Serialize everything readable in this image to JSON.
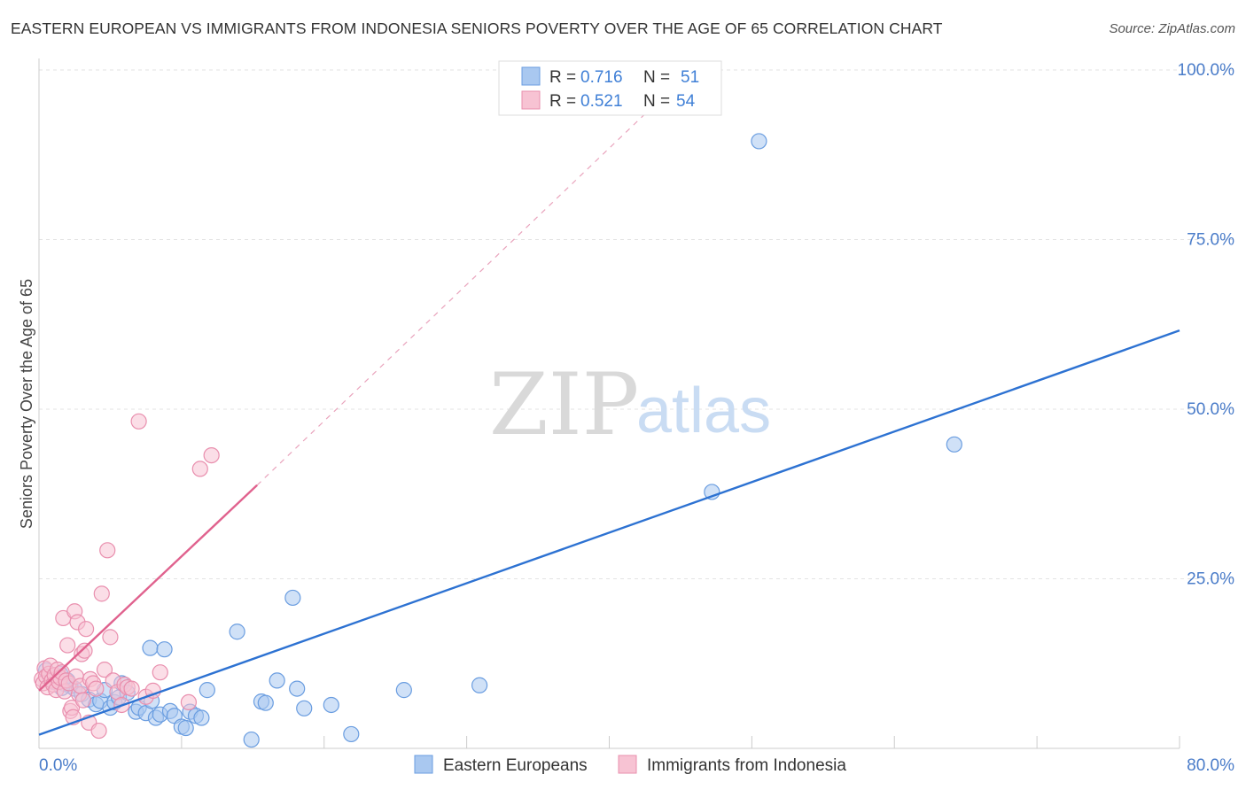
{
  "title": "EASTERN EUROPEAN VS IMMIGRANTS FROM INDONESIA SENIORS POVERTY OVER THE AGE OF 65 CORRELATION CHART",
  "source": "Source: ZipAtlas.com",
  "watermark": {
    "zip": "ZIP",
    "atlas": "atlas"
  },
  "chart_data": {
    "type": "scatter",
    "title": "EASTERN EUROPEAN VS IMMIGRANTS FROM INDONESIA SENIORS POVERTY OVER THE AGE OF 65 CORRELATION CHART",
    "xlabel": "",
    "ylabel": "Seniors Poverty Over the Age of 65",
    "xlim": [
      0,
      80
    ],
    "ylim": [
      0,
      100
    ],
    "x_tick_labels": [
      "0.0%",
      "80.0%"
    ],
    "y_ticks": [
      25,
      50,
      75,
      100
    ],
    "y_tick_labels": [
      "25.0%",
      "50.0%",
      "75.0%",
      "100.0%"
    ],
    "grid": true,
    "legend_position": "bottom-center",
    "stats_legend": [
      {
        "r_label": "R = ",
        "r_value": "0.716",
        "n_label": "N = ",
        "n_value": "51"
      },
      {
        "r_label": "R = ",
        "r_value": "0.521",
        "n_label": "N = ",
        "n_value": "54"
      }
    ],
    "series": [
      {
        "name": "Eastern Europeans",
        "color": "#6a9de0",
        "fill": "#a9c8f0",
        "trend": {
          "x": [
            0,
            80
          ],
          "y": [
            2.0,
            61.6
          ],
          "dashed_extension": false
        },
        "points": [
          [
            0.5,
            11.5
          ],
          [
            0.8,
            10.2
          ],
          [
            1.0,
            9.8
          ],
          [
            1.2,
            10.5
          ],
          [
            1.5,
            11.0
          ],
          [
            1.8,
            9.5
          ],
          [
            2.0,
            10.0
          ],
          [
            2.2,
            9.2
          ],
          [
            2.5,
            8.8
          ],
          [
            3.0,
            8.0
          ],
          [
            3.5,
            7.2
          ],
          [
            4.0,
            6.5
          ],
          [
            4.3,
            7.0
          ],
          [
            4.6,
            8.6
          ],
          [
            5.0,
            6.0
          ],
          [
            5.3,
            6.8
          ],
          [
            5.6,
            7.5
          ],
          [
            5.8,
            9.6
          ],
          [
            6.2,
            8.2
          ],
          [
            6.8,
            5.4
          ],
          [
            7.0,
            6.0
          ],
          [
            7.5,
            5.2
          ],
          [
            7.8,
            14.8
          ],
          [
            7.9,
            7.0
          ],
          [
            8.2,
            4.5
          ],
          [
            8.5,
            5.0
          ],
          [
            8.8,
            14.6
          ],
          [
            9.2,
            5.5
          ],
          [
            9.5,
            4.8
          ],
          [
            10.0,
            3.2
          ],
          [
            10.3,
            3.0
          ],
          [
            10.6,
            5.4
          ],
          [
            11.0,
            4.8
          ],
          [
            11.4,
            4.5
          ],
          [
            11.8,
            8.6
          ],
          [
            13.9,
            17.2
          ],
          [
            14.9,
            1.3
          ],
          [
            15.6,
            6.9
          ],
          [
            15.9,
            6.7
          ],
          [
            16.7,
            10.0
          ],
          [
            17.8,
            22.2
          ],
          [
            18.1,
            8.8
          ],
          [
            18.6,
            5.9
          ],
          [
            20.5,
            6.4
          ],
          [
            21.9,
            2.1
          ],
          [
            25.6,
            8.6
          ],
          [
            30.9,
            9.3
          ],
          [
            47.2,
            37.8
          ],
          [
            50.5,
            89.5
          ],
          [
            64.2,
            44.8
          ],
          [
            1.6,
            8.9
          ]
        ]
      },
      {
        "name": "Immigrants from Indonesia",
        "color": "#e98fae",
        "fill": "#f7c3d3",
        "trend": {
          "x": [
            0,
            15.3
          ],
          "y": [
            8.5,
            38.8
          ],
          "dashed_extension": true,
          "dash_to": [
            42.5,
            93.5
          ]
        },
        "points": [
          [
            0.2,
            10.2
          ],
          [
            0.3,
            9.6
          ],
          [
            0.4,
            11.8
          ],
          [
            0.5,
            10.6
          ],
          [
            0.6,
            9.0
          ],
          [
            0.7,
            11.0
          ],
          [
            0.8,
            12.2
          ],
          [
            0.9,
            10.0
          ],
          [
            1.0,
            9.4
          ],
          [
            1.1,
            10.8
          ],
          [
            1.2,
            8.6
          ],
          [
            1.3,
            11.6
          ],
          [
            1.4,
            9.8
          ],
          [
            1.5,
            10.4
          ],
          [
            1.6,
            11.2
          ],
          [
            1.7,
            19.2
          ],
          [
            1.8,
            8.4
          ],
          [
            1.9,
            10.0
          ],
          [
            2.0,
            15.2
          ],
          [
            2.1,
            9.6
          ],
          [
            2.2,
            5.5
          ],
          [
            2.3,
            6.0
          ],
          [
            2.4,
            4.6
          ],
          [
            2.5,
            20.2
          ],
          [
            2.6,
            10.6
          ],
          [
            2.7,
            18.6
          ],
          [
            2.8,
            8.0
          ],
          [
            2.9,
            9.2
          ],
          [
            3.0,
            13.9
          ],
          [
            3.1,
            7.1
          ],
          [
            3.2,
            14.4
          ],
          [
            3.3,
            17.6
          ],
          [
            3.5,
            3.8
          ],
          [
            3.6,
            10.2
          ],
          [
            3.8,
            9.6
          ],
          [
            4.0,
            8.8
          ],
          [
            4.2,
            2.6
          ],
          [
            4.4,
            22.8
          ],
          [
            4.6,
            11.6
          ],
          [
            4.8,
            29.2
          ],
          [
            5.0,
            16.4
          ],
          [
            5.2,
            10.0
          ],
          [
            5.5,
            8.3
          ],
          [
            5.8,
            6.4
          ],
          [
            6.0,
            9.4
          ],
          [
            6.2,
            9.0
          ],
          [
            6.5,
            8.8
          ],
          [
            7.0,
            48.2
          ],
          [
            7.5,
            7.6
          ],
          [
            8.0,
            8.5
          ],
          [
            8.5,
            11.2
          ],
          [
            10.5,
            6.8
          ],
          [
            11.3,
            41.2
          ],
          [
            12.1,
            43.2
          ]
        ]
      }
    ]
  }
}
